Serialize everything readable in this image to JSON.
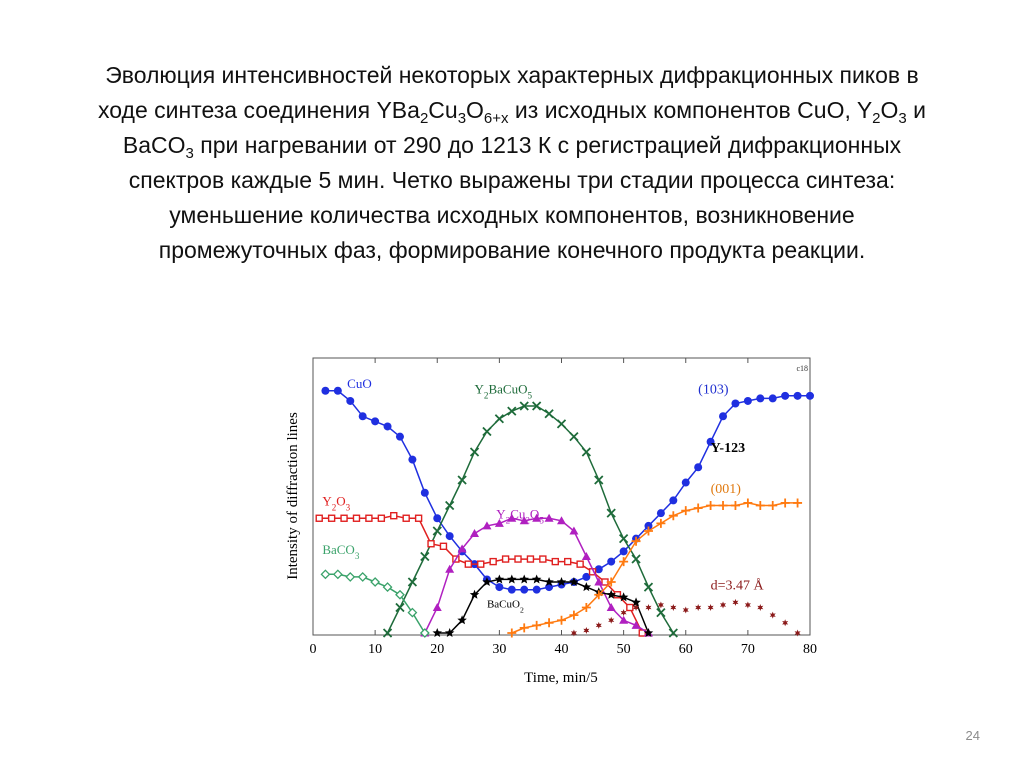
{
  "slide": {
    "text_lines": [
      [
        {
          "t": "Эволюция интенсивностей некоторых характерных дифракционных пиков в"
        }
      ],
      [
        {
          "t": "ходе синтеза соединения YBa"
        },
        {
          "t": "2",
          "sub": true
        },
        {
          "t": "Cu"
        },
        {
          "t": "3",
          "sub": true
        },
        {
          "t": "O"
        },
        {
          "t": "6+x",
          "sub": true
        },
        {
          "t": " из исходных компонентов CuO, Y"
        },
        {
          "t": "2",
          "sub": true
        },
        {
          "t": "O"
        },
        {
          "t": "3",
          "sub": true
        },
        {
          "t": " и"
        }
      ],
      [
        {
          "t": "BaCO"
        },
        {
          "t": "3",
          "sub": true
        },
        {
          "t": " при нагревании от 290 до 1213 К с регистрацией дифракционных"
        }
      ],
      [
        {
          "t": "спектров каждые 5 мин. Четко выражены три стадии процесса синтеза:"
        }
      ],
      [
        {
          "t": "уменьшение количества исходных компонентов, возникновение"
        }
      ],
      [
        {
          "t": "промежуточных фаз, формирование конечного продукта реакции."
        }
      ]
    ],
    "page_number": "24"
  },
  "chart_data": {
    "type": "line",
    "xlabel": "Time, min/5",
    "ylabel": "Intensity of diffraction lines",
    "xlim": [
      0,
      80
    ],
    "ylim": [
      0,
      100
    ],
    "x_ticks": [
      0,
      10,
      20,
      30,
      40,
      50,
      60,
      70,
      80
    ],
    "corner_label": "c18",
    "annotations": [
      {
        "text": "(103)",
        "x": 62,
        "y": 94,
        "color": "#1f2fcf"
      },
      {
        "text": "Y-123",
        "x": 64,
        "y": 71,
        "color": "#000000",
        "bold": true
      },
      {
        "text": "(001)",
        "x": 64,
        "y": 55,
        "color": "#e07a10"
      },
      {
        "text": "d=3.47 Å",
        "x": 64,
        "y": 17,
        "color": "#8b1a1a"
      }
    ],
    "series": [
      {
        "name": "CuO",
        "color": "#1f2fe0",
        "marker": "circle",
        "label_pos": [
          5.5,
          96
        ],
        "x": [
          2,
          4,
          6,
          8,
          10,
          12,
          14,
          16,
          18,
          20,
          22,
          24,
          26,
          28,
          30,
          32,
          34,
          36,
          38,
          40,
          42,
          44,
          46,
          48,
          50,
          52,
          54,
          56,
          58,
          60,
          62,
          64,
          66,
          68,
          70,
          72,
          74,
          76,
          78,
          80
        ],
        "y": [
          95,
          95,
          91,
          85,
          83,
          81,
          77,
          68,
          55,
          45,
          38,
          32,
          27,
          21,
          18,
          17,
          17,
          17,
          18,
          19,
          20,
          22,
          25,
          28,
          32,
          37,
          42,
          47,
          52,
          59,
          65,
          75,
          85,
          90,
          91,
          92,
          92,
          93,
          93,
          93
        ]
      },
      {
        "name": "Y2BaCuO5",
        "color": "#1e6b3a",
        "marker": "x",
        "label_pos": [
          26,
          94
        ],
        "x": [
          12,
          14,
          16,
          18,
          20,
          22,
          24,
          26,
          28,
          30,
          32,
          34,
          36,
          38,
          40,
          42,
          44,
          46,
          48,
          50,
          52,
          54,
          56,
          58
        ],
        "y": [
          0,
          10,
          20,
          30,
          40,
          50,
          60,
          71,
          79,
          84,
          87,
          89,
          89,
          86,
          82,
          77,
          71,
          60,
          47,
          37,
          29,
          18,
          8,
          0
        ]
      },
      {
        "name": "Y2O3",
        "color": "#e02020",
        "marker": "square",
        "label_pos": [
          1.5,
          50
        ],
        "x": [
          1,
          3,
          5,
          7,
          9,
          11,
          13,
          15,
          17,
          19,
          21,
          23,
          25,
          27,
          29,
          31,
          33,
          35,
          37,
          39,
          41,
          43,
          45,
          47,
          49,
          51,
          53
        ],
        "y": [
          45,
          45,
          45,
          45,
          45,
          45,
          46,
          45,
          45,
          35,
          34,
          29,
          27,
          27,
          28,
          29,
          29,
          29,
          29,
          28,
          28,
          27,
          24,
          20,
          15,
          10,
          0
        ]
      },
      {
        "name": "Y2Cu2O5",
        "color": "#b020c0",
        "marker": "triangle",
        "label_pos": [
          29.5,
          45
        ],
        "x": [
          18,
          20,
          22,
          24,
          26,
          28,
          30,
          32,
          34,
          36,
          38,
          40,
          42,
          44,
          46,
          48,
          50,
          52,
          54
        ],
        "y": [
          0,
          10,
          25,
          33,
          39,
          42,
          43,
          45,
          44,
          45,
          45,
          44,
          40,
          30,
          20,
          10,
          5,
          3,
          0
        ]
      },
      {
        "name": "BaCO3",
        "color": "#3aa26a",
        "marker": "diamond",
        "label_pos": [
          1.5,
          31
        ],
        "x": [
          2,
          4,
          6,
          8,
          10,
          12,
          14,
          16,
          18
        ],
        "y": [
          23,
          23,
          22,
          22,
          20,
          18,
          15,
          8,
          0
        ]
      },
      {
        "name": "BaCuO2",
        "color": "#000000",
        "marker": "star",
        "label_pos": [
          28,
          10
        ],
        "x": [
          20,
          22,
          24,
          26,
          28,
          30,
          32,
          34,
          36,
          38,
          40,
          42,
          44,
          46,
          48,
          50,
          52,
          54
        ],
        "y": [
          0,
          0,
          5,
          15,
          20,
          21,
          21,
          21,
          21,
          20,
          20,
          20,
          18,
          16,
          15,
          14,
          12,
          0
        ]
      },
      {
        "name": "Y-123 (001)",
        "color": "#ff7a10",
        "marker": "plus",
        "x": [
          32,
          34,
          36,
          38,
          40,
          42,
          44,
          46,
          48,
          50,
          52,
          54,
          56,
          58,
          60,
          62,
          64,
          66,
          68,
          70,
          72,
          74,
          76,
          78
        ],
        "y": [
          0,
          2,
          3,
          4,
          5,
          7,
          10,
          15,
          20,
          28,
          36,
          40,
          43,
          46,
          48,
          49,
          50,
          50,
          50,
          51,
          50,
          50,
          51,
          51
        ]
      },
      {
        "name": "d=3.47 Å",
        "color": "#8b1a1a",
        "marker": "star6",
        "x": [
          42,
          44,
          46,
          48,
          50,
          52,
          54,
          56,
          58,
          60,
          62,
          64,
          66,
          68,
          70,
          72,
          74,
          76,
          78
        ],
        "y": [
          0,
          1,
          3,
          5,
          8,
          10,
          10,
          11,
          10,
          9,
          10,
          10,
          11,
          12,
          11,
          10,
          7,
          4,
          0
        ]
      }
    ]
  }
}
